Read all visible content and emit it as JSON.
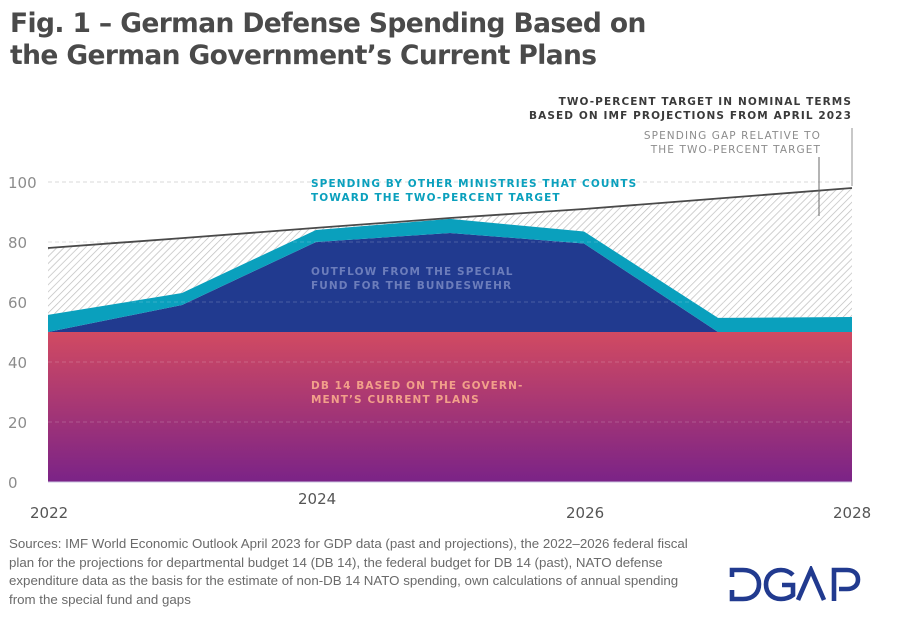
{
  "title": {
    "line1": "Fig. 1 – German Defense Spending Based on",
    "line2": "the German Government’s Current Plans"
  },
  "colors": {
    "db14_top": "#d14a62",
    "db14_bottom": "#7b2387",
    "special_fund": "#213a8f",
    "other_ministries": "#0aa0bd",
    "target_line": "#4a4a4a",
    "gap_hatch": "#bdbdbd",
    "gap_label": "#8c8c8c",
    "target_label": "#3a3a3a",
    "db14_label": "#f2a08a",
    "special_fund_label": "#6c7dbb",
    "logo": "#213a8f"
  },
  "chart_data": {
    "type": "area",
    "title": "German Defense Spending Based on the German Government’s Current Plans",
    "xlabel": "",
    "ylabel": "",
    "x": [
      2022,
      2023,
      2024,
      2025,
      2026,
      2027,
      2028
    ],
    "x_ticks": [
      "2022",
      "2024",
      "2026",
      "2028"
    ],
    "y_ticks": [
      "0",
      "20",
      "40",
      "60",
      "80",
      "100"
    ],
    "ylim": [
      0,
      100
    ],
    "grid": true,
    "stacked": true,
    "series": [
      {
        "name": "DB 14 based on the government’s current plans",
        "values": [
          50,
          50,
          50,
          50,
          50,
          50,
          50
        ]
      },
      {
        "name": "Outflow from the special fund for the Bundeswehr",
        "values": [
          0,
          9,
          30,
          33,
          29.5,
          0,
          0
        ]
      },
      {
        "name": "Spending by other ministries that counts toward the two-percent target",
        "values": [
          5.7,
          4,
          4,
          4.7,
          4,
          4.7,
          5
        ]
      }
    ],
    "target_line": {
      "name": "Two-percent target in nominal terms based on IMF projections from April 2023",
      "values": [
        78,
        81.3,
        84.7,
        88,
        91,
        94.5,
        98
      ]
    },
    "gap_area": {
      "name": "Spending gap relative to the two-percent target"
    },
    "annotations": {
      "target": [
        "TWO-PERCENT TARGET IN NOMINAL TERMS",
        "BASED ON IMF PROJECTIONS FROM APRIL 2023"
      ],
      "gap": [
        "SPENDING GAP RELATIVE TO",
        "THE TWO-PERCENT TARGET"
      ],
      "other_ministries": [
        "SPENDING BY OTHER MINISTRIES THAT COUNTS",
        "TOWARD THE TWO-PERCENT TARGET"
      ],
      "special_fund": [
        "OUTFLOW FROM THE SPECIAL",
        "FUND FOR THE BUNDESWEHR"
      ],
      "db14": [
        "DB 14 BASED ON THE GOVERN-",
        "MENT’S CURRENT PLANS"
      ]
    }
  },
  "sources": "Sources: IMF World Economic Outlook April 2023 for GDP data (past and projections), the 2022–2026 federal fiscal plan for the projections for departmental budget 14 (DB 14), the federal budget for DB 14 (past), NATO defense expenditure data as the basis for the estimate of non-DB 14 NATO spending, own calculations of annual spending from the special fund and gaps",
  "logo": {
    "text": "DGAP"
  }
}
